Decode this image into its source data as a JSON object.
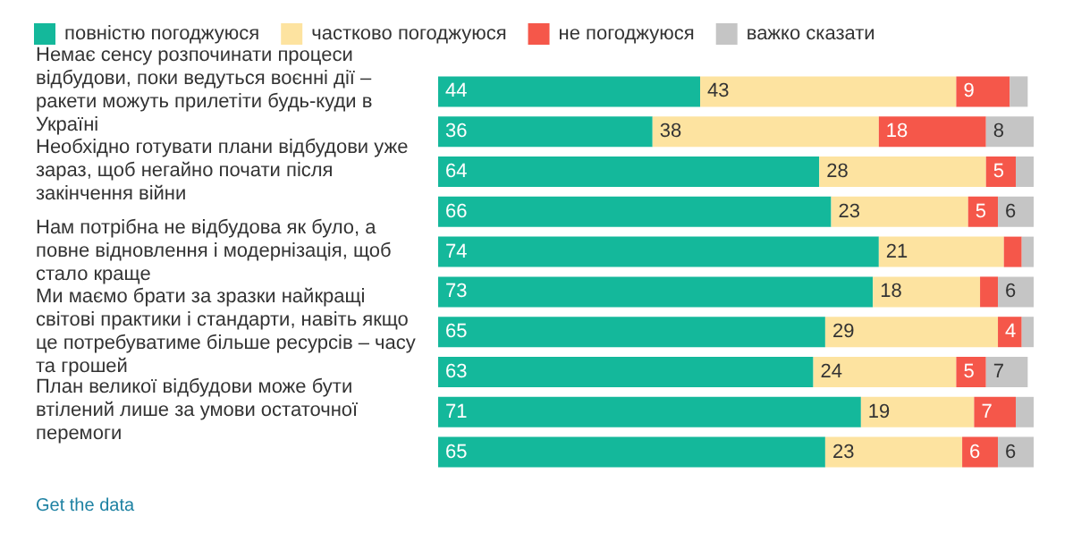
{
  "chart_data": {
    "type": "bar",
    "orientation": "horizontal",
    "stacked": true,
    "categories": [
      "Немає сенсу розпочинати процеси відбудови, поки ведуться воєнні дії – ракети можуть прилетіти будь-куди в Україні",
      null,
      "Необхідно готувати плани відбудови уже зараз, щоб негайно почати після закінчення війни",
      null,
      "Нам потрібна не відбудова як було, а повне відновлення і модернізація, щоб стало краще",
      null,
      "Ми маємо брати за зразки найкращі світові практики і стандарти, навіть якщо це потребуватиме більше ресурсів – часу та грошей",
      null,
      "План великої відбудови може бути втілений лише за умови остаточної перемоги",
      null
    ],
    "series": [
      {
        "name": "повністю погоджуюся",
        "color": "#14b89b",
        "values": [
          44,
          36,
          64,
          66,
          74,
          73,
          65,
          63,
          71,
          65
        ],
        "value_labels": [
          "44",
          "36",
          "64",
          "66",
          "74",
          "73",
          "65",
          "63",
          "71",
          "65"
        ]
      },
      {
        "name": "частково погоджуюся",
        "color": "#fde3a0",
        "values": [
          43,
          38,
          28,
          23,
          21,
          18,
          29,
          24,
          19,
          23
        ],
        "value_labels": [
          "43",
          "38",
          "28",
          "23",
          "21",
          "18",
          "29",
          "24",
          "19",
          "23"
        ]
      },
      {
        "name": "не погоджуюся",
        "color": "#f5574a",
        "values": [
          9,
          18,
          5,
          5,
          3,
          3,
          4,
          5,
          7,
          6
        ],
        "value_labels": [
          "9",
          "18",
          "5",
          "5",
          null,
          null,
          "4",
          "5",
          "7",
          "6"
        ]
      },
      {
        "name": "важко сказати",
        "color": "#c5c5c5",
        "values": [
          3,
          8,
          3,
          6,
          2,
          6,
          2,
          7,
          3,
          6
        ],
        "value_labels": [
          null,
          "8",
          null,
          "6",
          null,
          "6",
          null,
          "7",
          null,
          "6"
        ]
      }
    ],
    "xlim": [
      0,
      100
    ],
    "tick_labels": "y",
    "grid": false,
    "legend": "top left",
    "annotations": [
      "Get the data"
    ]
  }
}
